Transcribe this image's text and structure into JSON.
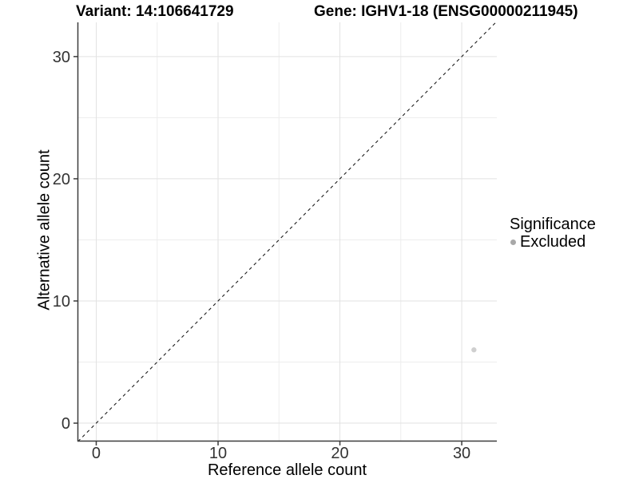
{
  "header": {
    "variant_title": "Variant: 14:106641729",
    "gene_title": "Gene: IGHV1-18 (ENSG00000211945)"
  },
  "chart_data": {
    "type": "scatter",
    "xlabel": "Reference allele count",
    "ylabel": "Alternative allele count",
    "xlim": [
      -1.54,
      32.88
    ],
    "ylim": [
      -1.5,
      32.8
    ],
    "xticks": [
      0,
      10,
      20,
      30
    ],
    "yticks": [
      0,
      10,
      20,
      30
    ],
    "minor_xticks": [
      5,
      15,
      25
    ],
    "minor_yticks": [
      5,
      15,
      25
    ],
    "grid": true,
    "legend_position": "right",
    "series": [
      {
        "name": "Excluded",
        "color": "#a8a8a8",
        "point_alpha": 0.55,
        "point_radius": 3.2,
        "points": [
          {
            "x": 31,
            "y": 6
          }
        ]
      }
    ],
    "reference_line": {
      "kind": "identity",
      "equation": "y = x",
      "style": "dashed",
      "color": "#1a1a1a"
    }
  },
  "legend": {
    "title": "Significance",
    "items": [
      {
        "label": "Excluded",
        "color": "#a8a8a8",
        "marker": "circle"
      }
    ]
  },
  "colors": {
    "background": "#ffffff",
    "axis_line": "#3c3c3c",
    "tick_text": "#333333",
    "grid_major": "#e2e2e2",
    "grid_minor": "#ededed"
  }
}
